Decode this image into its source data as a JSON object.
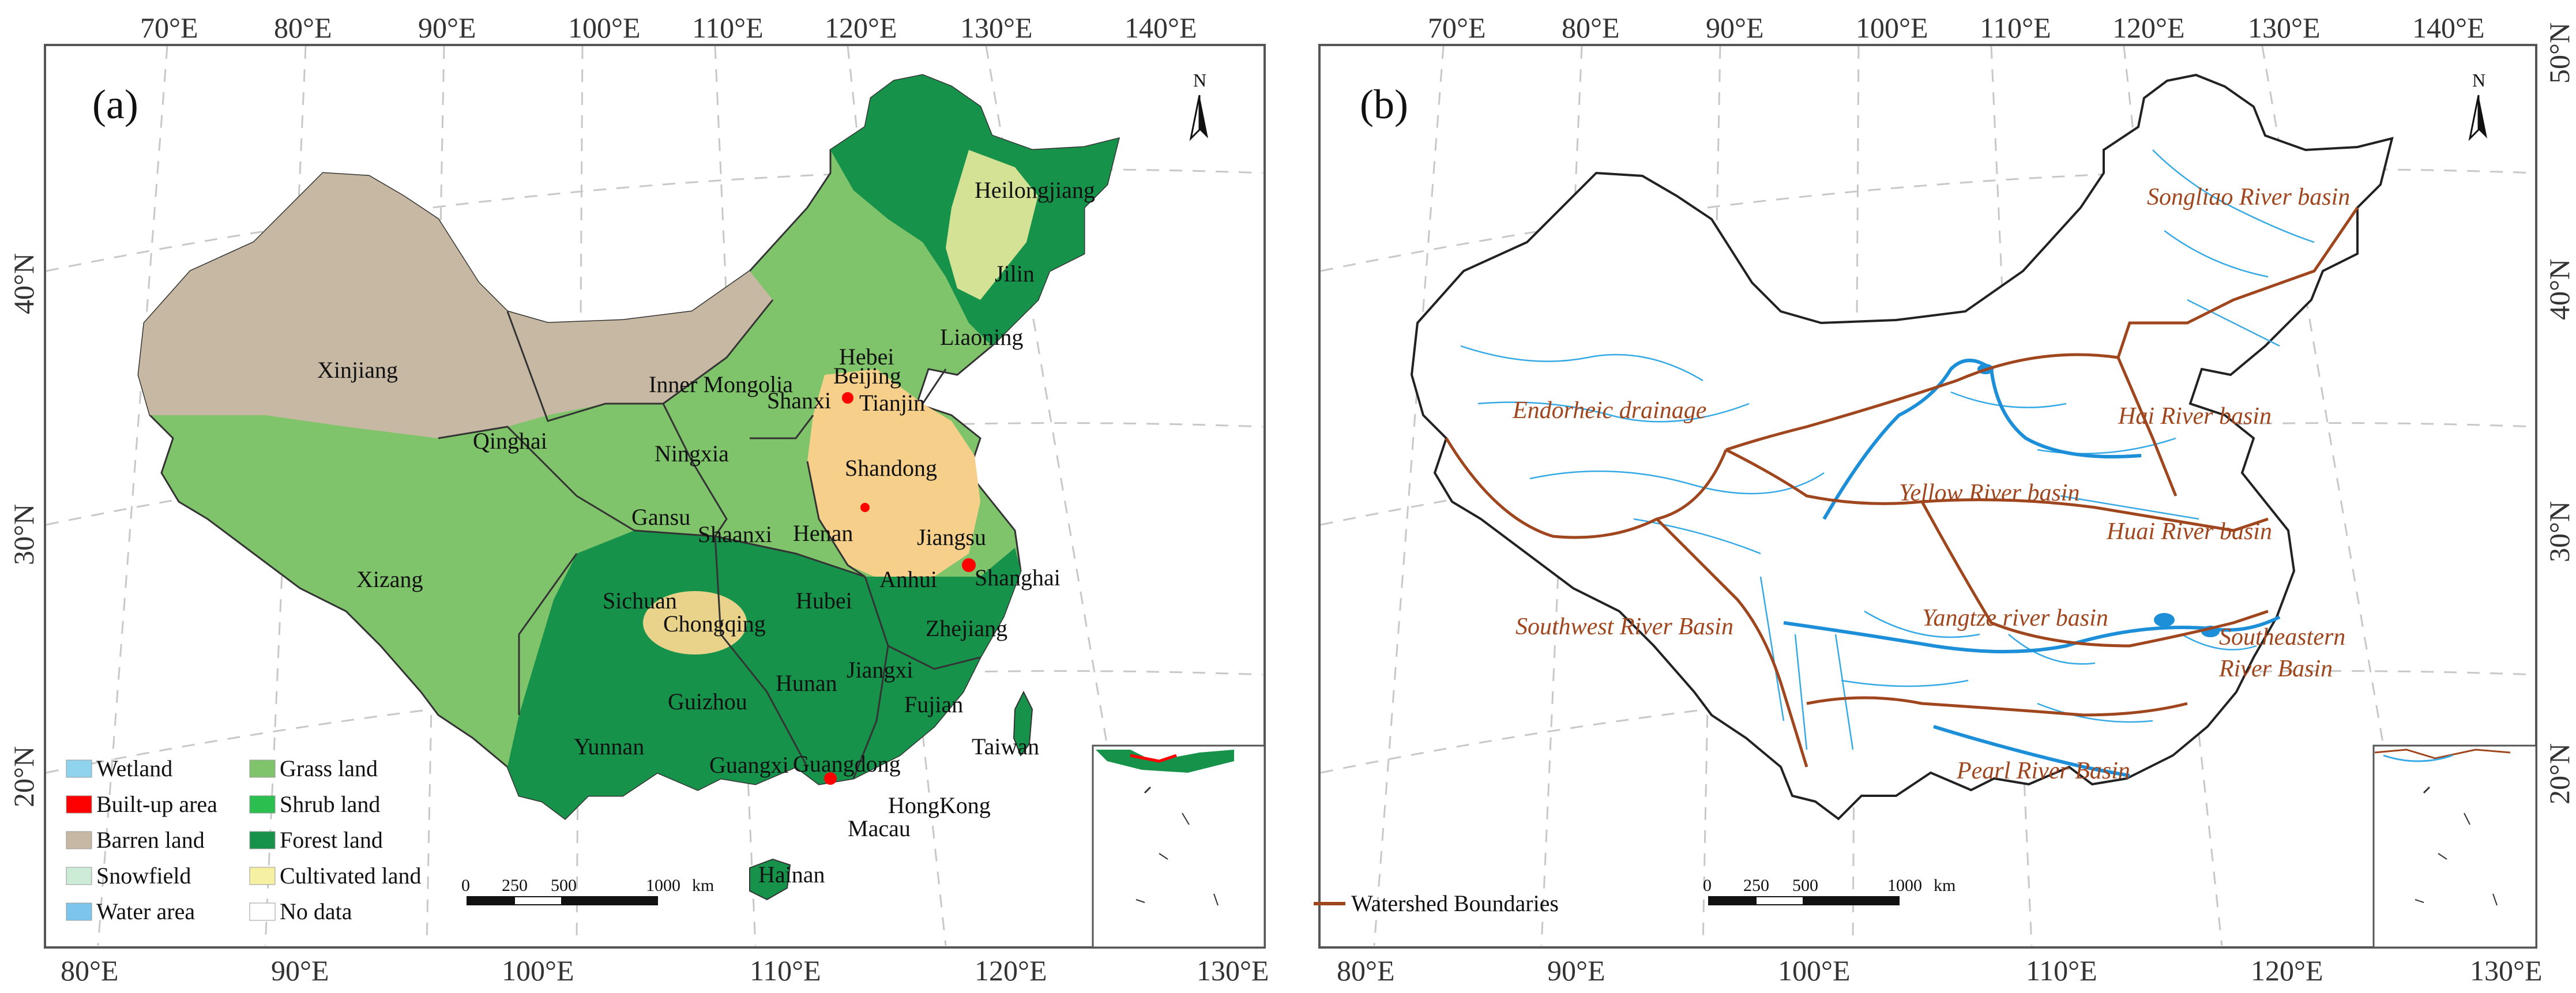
{
  "panel_a": {
    "label": "(a)",
    "north": "N",
    "top_lon": [
      "70°E",
      "80°E",
      "90°E",
      "100°E",
      "110°E",
      "120°E",
      "130°E",
      "140°E"
    ],
    "bottom_lon": [
      "80°E",
      "90°E",
      "100°E",
      "110°E",
      "120°E",
      "130°E"
    ],
    "provinces": [
      "Heilongjiang",
      "Jilin",
      "Liaoning",
      "Hebei",
      "Beijing",
      "Tianjin",
      "Xinjiang",
      "Inner Mongolia",
      "Ningxia",
      "Shanxi",
      "Shandong",
      "Qinghai",
      "Gansu",
      "Shaanxi",
      "Henan",
      "Jiangsu",
      "Xizang",
      "Anhui",
      "Shanghai",
      "Sichuan",
      "Chongqing",
      "Hubei",
      "Zhejiang",
      "Hunan",
      "Jiangxi",
      "Guizhou",
      "Fujian",
      "Taiwan",
      "Yunnan",
      "Guangxi",
      "Guangdong",
      "HongKong",
      "Macau",
      "Hainan"
    ],
    "legend": [
      {
        "label": "Wetland",
        "color": "#8fd3ef"
      },
      {
        "label": "Built-up area",
        "color": "#ff0000"
      },
      {
        "label": "Barren land",
        "color": "#c6b8a2"
      },
      {
        "label": "Snowfield",
        "color": "#cdecd7"
      },
      {
        "label": "Water area",
        "color": "#7cc6ee"
      },
      {
        "label": "Grass land",
        "color": "#7fc46b"
      },
      {
        "label": "Shrub land",
        "color": "#2bbf4f"
      },
      {
        "label": "Forest land",
        "color": "#17924a"
      },
      {
        "label": "Cultivated land",
        "color": "#f6f0a2"
      },
      {
        "label": "No data",
        "color": "#ffffff"
      }
    ],
    "scale": {
      "ticks": [
        "0",
        "250",
        "500",
        "1000"
      ],
      "unit": "km"
    }
  },
  "panel_b": {
    "label": "(b)",
    "north": "N",
    "top_lon": [
      "70°E",
      "80°E",
      "90°E",
      "100°E",
      "110°E",
      "120°E",
      "130°E",
      "140°E"
    ],
    "bottom_lon": [
      "80°E",
      "90°E",
      "100°E",
      "110°E",
      "120°E",
      "130°E"
    ],
    "right_lat": [
      "50°N",
      "40°N",
      "30°N",
      "20°N"
    ],
    "basins": [
      "Songliao River basin",
      "Endorheic drainage",
      "Hai River  basin",
      "Yellow River basin",
      "Huai River basin",
      "Southwest River Basin",
      "Yangtze river basin",
      "Southeastern",
      "River Basin",
      "Pearl River Basin"
    ],
    "legend": [
      {
        "label": "Watershed Boundaries",
        "color": "#a0461e"
      }
    ],
    "scale": {
      "ticks": [
        "0",
        "250",
        "500",
        "1000"
      ],
      "unit": "km"
    }
  },
  "left_lat": [
    "40°N",
    "30°N",
    "20°N"
  ]
}
